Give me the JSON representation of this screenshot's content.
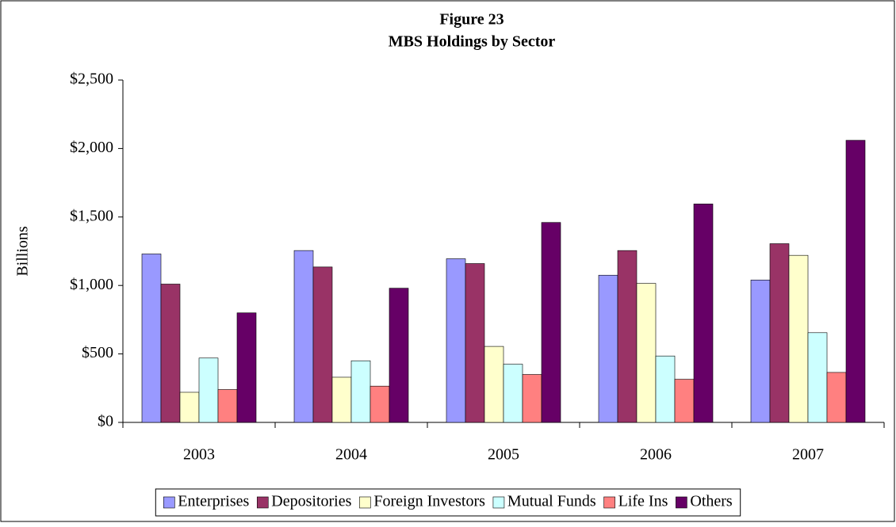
{
  "chart_data": {
    "type": "bar",
    "title": "Figure 23",
    "subtitle": "MBS Holdings by Sector",
    "y_label": "Billions",
    "categories": [
      "2003",
      "2004",
      "2005",
      "2006",
      "2007"
    ],
    "series": [
      {
        "name": "Enterprises",
        "color": "#9999ff",
        "values": [
          1230,
          1255,
          1195,
          1075,
          1040
        ]
      },
      {
        "name": "Depositories",
        "color": "#993366",
        "values": [
          1010,
          1135,
          1160,
          1255,
          1305
        ]
      },
      {
        "name": "Foreign Investors",
        "color": "#ffffcc",
        "values": [
          220,
          330,
          555,
          1015,
          1220
        ]
      },
      {
        "name": "Mutual Funds",
        "color": "#ccffff",
        "values": [
          470,
          450,
          425,
          485,
          655
        ]
      },
      {
        "name": "Life Ins",
        "color": "#ff8080",
        "values": [
          240,
          265,
          350,
          315,
          365
        ]
      },
      {
        "name": "Others",
        "color": "#660066",
        "values": [
          800,
          980,
          1460,
          1595,
          2060
        ]
      }
    ],
    "ylim": [
      0,
      2500
    ],
    "yticks": [
      {
        "value": 0,
        "label": "$0"
      },
      {
        "value": 500,
        "label": "$500"
      },
      {
        "value": 1000,
        "label": "$1,000"
      },
      {
        "value": 1500,
        "label": "$1,500"
      },
      {
        "value": 2000,
        "label": "$2,000"
      },
      {
        "value": 2500,
        "label": "$2,500"
      }
    ],
    "grid": false,
    "legend": "bottom"
  }
}
